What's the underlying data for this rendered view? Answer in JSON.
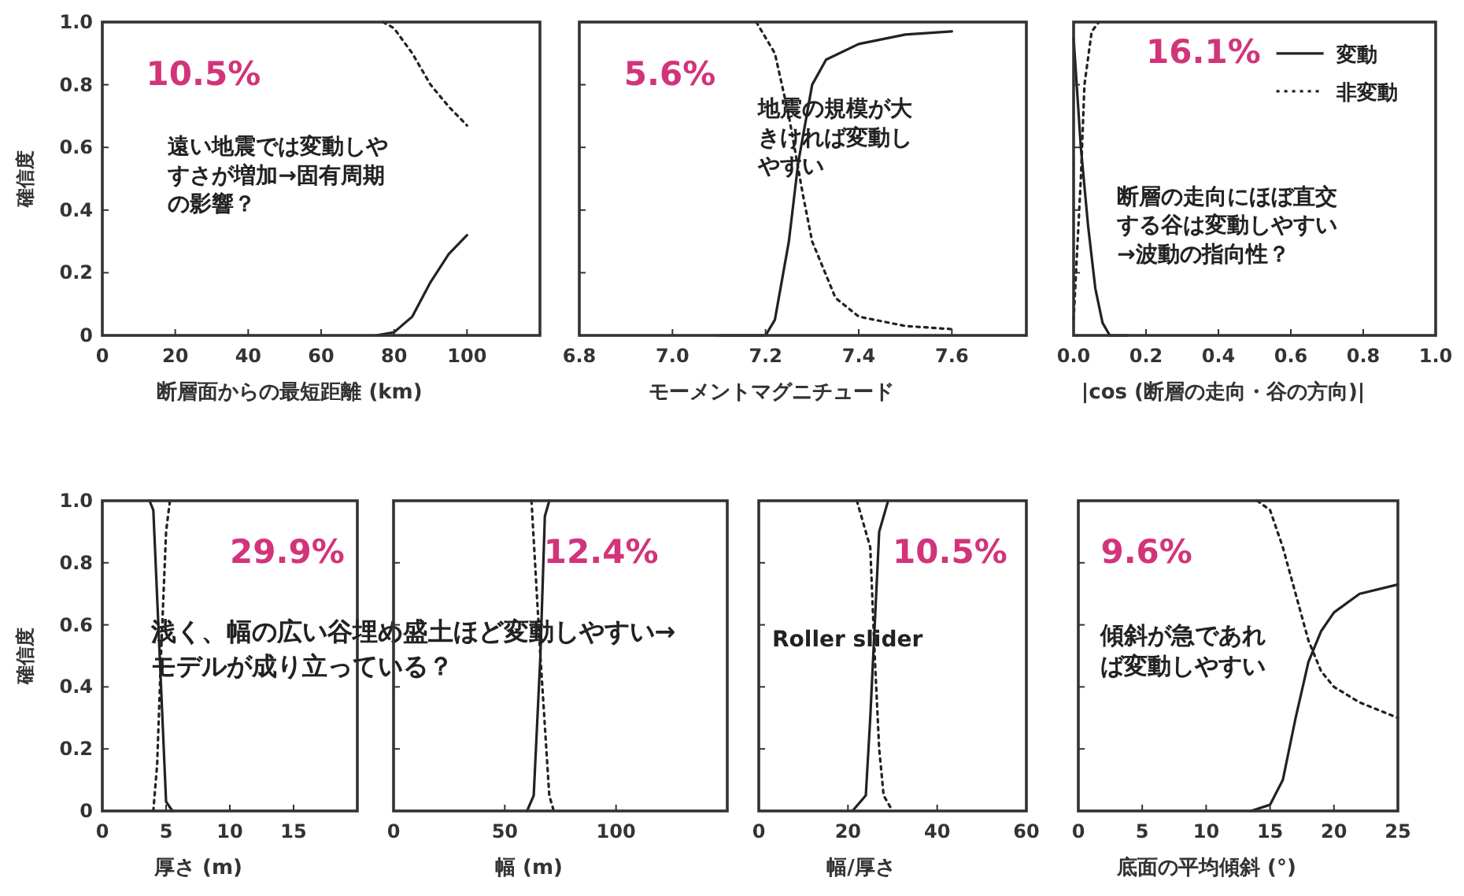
{
  "chart_data": [
    {
      "type": "line",
      "xlabel": "断層面からの最短距離 (km)",
      "ylabel": "確信度",
      "xlim": [
        0,
        120
      ],
      "xticks": [
        0,
        20,
        40,
        60,
        80,
        100
      ],
      "ylim": [
        0,
        1
      ],
      "yticks": [
        0,
        0.2,
        0.4,
        0.6,
        0.8,
        {
          "value": 1,
          "label": "1.0"
        }
      ],
      "grid": false,
      "series": [
        {
          "color": "#222222",
          "line_style": "solid",
          "x": [
            75,
            80,
            85,
            90,
            95,
            100
          ],
          "values": [
            0,
            0.01,
            0.06,
            0.17,
            0.26,
            0.32
          ]
        },
        {
          "color": "#222222",
          "line_style": "dotted",
          "x": [
            77,
            80,
            85,
            90,
            95,
            100
          ],
          "values": [
            1,
            0.98,
            0.9,
            0.8,
            0.73,
            0.67
          ]
        }
      ],
      "annotations": [
        "10.5%",
        "遠い地震では変動しやすさが増加→固有周期の影響？"
      ]
    },
    {
      "type": "line",
      "xlabel": "モーメントマグニチュード",
      "xlim": [
        6.8,
        7.76
      ],
      "xticks": [
        6.8,
        {
          "value": 7,
          "label": "7.0"
        },
        7.2,
        7.4,
        7.6
      ],
      "ylim": [
        0,
        1
      ],
      "yticks": [
        0,
        0.2,
        0.4,
        0.6,
        0.8,
        1
      ],
      "tick_labels": "x",
      "grid": false,
      "series": [
        {
          "color": "#222222",
          "line_style": "solid",
          "x": [
            7.1,
            7.2,
            7.22,
            7.25,
            7.27,
            7.3,
            7.33,
            7.4,
            7.5,
            7.6
          ],
          "values": [
            0,
            0,
            0.05,
            0.3,
            0.55,
            0.8,
            0.88,
            0.93,
            0.96,
            0.97
          ]
        },
        {
          "color": "#222222",
          "line_style": "dotted",
          "x": [
            7.18,
            7.22,
            7.25,
            7.28,
            7.3,
            7.35,
            7.4,
            7.5,
            7.6
          ],
          "values": [
            1,
            0.9,
            0.7,
            0.45,
            0.3,
            0.12,
            0.06,
            0.03,
            0.02
          ]
        }
      ],
      "annotations": [
        "5.6%",
        "地震の規模が大きければ変動しやすい"
      ]
    },
    {
      "type": "line",
      "xlabel": "|cos (断層の走向・谷の方向)|",
      "xlim": [
        0,
        1
      ],
      "xticks": [
        {
          "value": 0,
          "label": "0.0"
        },
        0.2,
        0.4,
        0.6,
        0.8,
        {
          "value": 1,
          "label": "1.0"
        }
      ],
      "ylim": [
        0,
        1
      ],
      "yticks": [
        0,
        0.2,
        0.4,
        0.6,
        0.8,
        1
      ],
      "tick_labels": "x",
      "grid": false,
      "legend": "top right",
      "series": [
        {
          "name": "変動",
          "color": "#222222",
          "line_style": "solid",
          "x": [
            0,
            0.02,
            0.04,
            0.06,
            0.08,
            0.1,
            0.15
          ],
          "values": [
            0.95,
            0.6,
            0.35,
            0.15,
            0.04,
            0,
            0
          ]
        },
        {
          "name": "非変動",
          "color": "#222222",
          "line_style": "dotted",
          "x": [
            0,
            0.02,
            0.03,
            0.05,
            0.07
          ],
          "values": [
            0.05,
            0.5,
            0.8,
            0.97,
            1
          ]
        }
      ],
      "annotations": [
        "16.1%",
        "断層の走向にほぼ直交する谷は変動しやすい→波動の指向性？"
      ]
    },
    {
      "type": "line",
      "xlabel": "厚さ (m)",
      "ylabel": "確信度",
      "xlim": [
        0,
        20
      ],
      "xticks": [
        0,
        5,
        10,
        15
      ],
      "ylim": [
        0,
        1
      ],
      "yticks": [
        0,
        0.2,
        0.4,
        0.6,
        0.8,
        {
          "value": 1,
          "label": "1.0"
        }
      ],
      "grid": false,
      "series": [
        {
          "color": "#222222",
          "line_style": "solid",
          "x": [
            3.7,
            4,
            4.5,
            5,
            5.5
          ],
          "values": [
            1,
            0.97,
            0.5,
            0.03,
            0
          ]
        },
        {
          "color": "#222222",
          "line_style": "dotted",
          "x": [
            4,
            4.3,
            4.6,
            5,
            5.3
          ],
          "values": [
            0,
            0.15,
            0.5,
            0.9,
            1
          ]
        }
      ],
      "annotations": [
        "29.9%",
        "浅く、幅の広い谷埋め盛土ほど変動しやすい→",
        "モデルが成り立っている？"
      ]
    },
    {
      "type": "line",
      "xlabel": "幅 (m)",
      "xlim": [
        0,
        150
      ],
      "xticks": [
        0,
        50,
        100
      ],
      "ylim": [
        0,
        1
      ],
      "yticks": [
        0,
        0.2,
        0.4,
        0.6,
        0.8,
        1
      ],
      "tick_labels": "x",
      "grid": false,
      "series": [
        {
          "color": "#222222",
          "line_style": "solid",
          "x": [
            60,
            63,
            66,
            68,
            70
          ],
          "values": [
            0,
            0.05,
            0.5,
            0.95,
            1
          ]
        },
        {
          "color": "#222222",
          "line_style": "dotted",
          "x": [
            62,
            66,
            70,
            72
          ],
          "values": [
            1,
            0.5,
            0.05,
            0
          ]
        }
      ],
      "annotations": [
        "12.4%"
      ]
    },
    {
      "type": "line",
      "xlabel": "幅/厚さ",
      "xlim": [
        0,
        60
      ],
      "xticks": [
        0,
        20,
        40,
        60
      ],
      "ylim": [
        0,
        1
      ],
      "yticks": [
        0,
        0.2,
        0.4,
        0.6,
        0.8,
        1
      ],
      "tick_labels": "x",
      "grid": false,
      "series": [
        {
          "color": "#222222",
          "line_style": "solid",
          "x": [
            21,
            24,
            25,
            26,
            27,
            29
          ],
          "values": [
            0,
            0.05,
            0.3,
            0.6,
            0.9,
            1
          ]
        },
        {
          "color": "#222222",
          "line_style": "dotted",
          "x": [
            22,
            25,
            26,
            27,
            28,
            30
          ],
          "values": [
            1,
            0.85,
            0.5,
            0.2,
            0.05,
            0
          ]
        }
      ],
      "annotations": [
        "10.5%",
        "Roller slider"
      ]
    },
    {
      "type": "line",
      "xlabel": "底面の平均傾斜 (°)",
      "xlim": [
        0,
        25
      ],
      "xticks": [
        0,
        5,
        10,
        15,
        20,
        25
      ],
      "ylim": [
        0,
        1
      ],
      "yticks": [
        0,
        0.2,
        0.4,
        0.6,
        0.8,
        1
      ],
      "tick_labels": "x",
      "grid": false,
      "series": [
        {
          "color": "#222222",
          "line_style": "solid",
          "x": [
            13.5,
            15,
            16,
            17,
            18,
            19,
            20,
            22,
            25
          ],
          "values": [
            0,
            0.02,
            0.1,
            0.3,
            0.48,
            0.58,
            0.64,
            0.7,
            0.73
          ]
        },
        {
          "color": "#222222",
          "line_style": "dotted",
          "x": [
            14,
            15,
            16,
            17,
            18,
            19,
            20,
            22,
            25
          ],
          "values": [
            1,
            0.97,
            0.85,
            0.7,
            0.55,
            0.45,
            0.4,
            0.35,
            0.3
          ]
        }
      ],
      "annotations": [
        "9.6%",
        "傾斜が急であれば変動しやすい"
      ]
    }
  ]
}
